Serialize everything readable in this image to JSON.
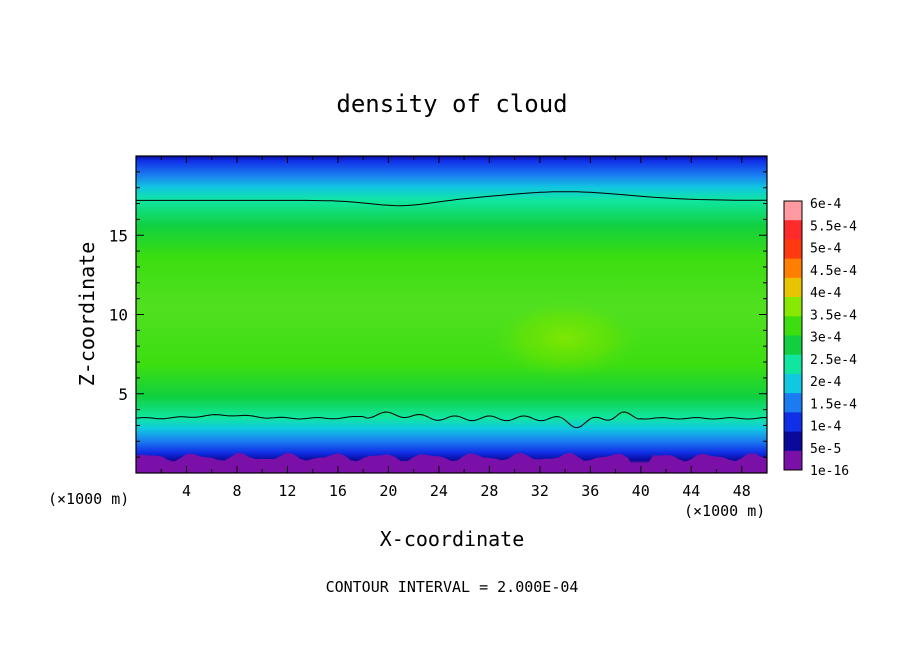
{
  "chart_data": {
    "type": "heatmap",
    "title": "density of cloud",
    "xlabel": "X-coordinate",
    "ylabel": "Z-coordinate",
    "x_unit_label_left": "(×1000 m)",
    "x_unit_label_right": "(×1000 m)",
    "footer": "CONTOUR INTERVAL = 2.000E-04",
    "xlim": [
      0,
      50
    ],
    "ylim": [
      0,
      20
    ],
    "x_ticks": [
      "4",
      "8",
      "12",
      "16",
      "20",
      "24",
      "28",
      "32",
      "36",
      "40",
      "44",
      "48"
    ],
    "x_tick_values": [
      4,
      8,
      12,
      16,
      20,
      24,
      28,
      32,
      36,
      40,
      44,
      48
    ],
    "y_ticks": [
      "5",
      "10",
      "15"
    ],
    "y_tick_values": [
      5,
      10,
      15
    ],
    "colorbar_labels": [
      "6e-4",
      "5.5e-4",
      "5e-4",
      "4.5e-4",
      "4e-4",
      "3.5e-4",
      "3e-4",
      "2.5e-4",
      "2e-4",
      "1.5e-4",
      "1e-4",
      "5e-5",
      "1e-16"
    ],
    "colorbar_colors": [
      "#ff9aa0",
      "#ff2a2a",
      "#ff3a10",
      "#ff7f00",
      "#e8c400",
      "#88e800",
      "#3cde10",
      "#10d040",
      "#10e6a0",
      "#10c8e0",
      "#1a7cf0",
      "#1030e8",
      "#0a0a9a",
      "#7a10a8"
    ],
    "contour_levels": [
      0.0002
    ],
    "field_summary": {
      "z": [
        0,
        0.8,
        1.5,
        2.2,
        3.0,
        3.5,
        4.5,
        6,
        8,
        10,
        12,
        14,
        16,
        17.2,
        18.5,
        20
      ],
      "density": [
        0,
        1e-05,
        5e-05,
        0.0001,
        0.00015,
        0.0002,
        0.00025,
        0.0003,
        0.00032,
        0.00033,
        0.00031,
        0.00028,
        0.00024,
        0.0002,
        0.00012,
        5e-05
      ],
      "local_max_x": 34,
      "local_max_z": 8.5,
      "local_max_value": 0.00037
    }
  }
}
